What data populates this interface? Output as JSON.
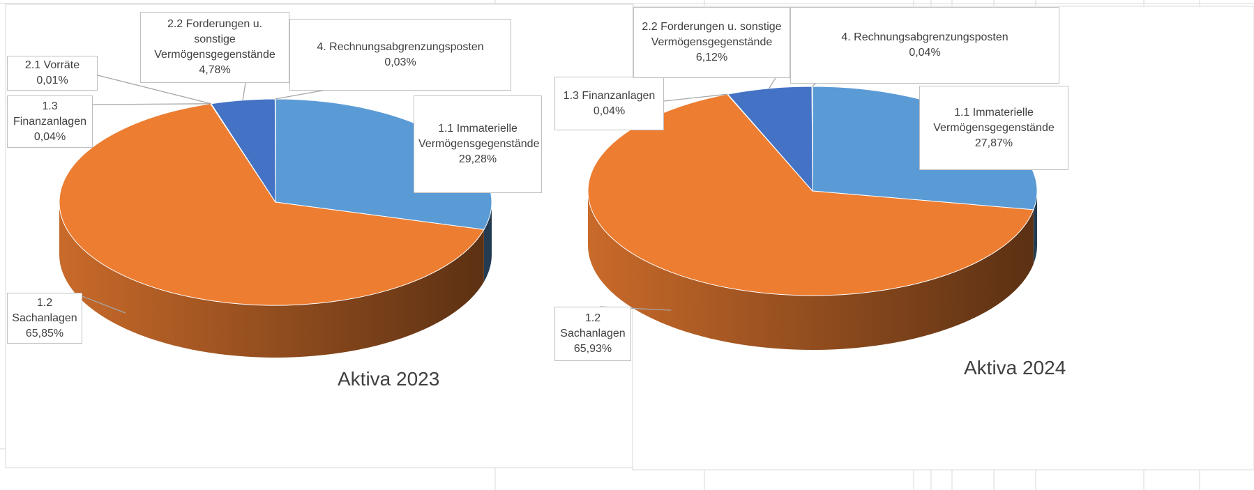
{
  "chart_data": [
    {
      "type": "pie",
      "title": "Aktiva 2023",
      "categories": [
        "1.1 Immaterielle Vermögensgegenstände",
        "1.2 Sachanlagen",
        "1.3 Finanzanlagen",
        "2.1 Vorräte",
        "2.2 Forderungen u. sonstige Vermögensgegenstände",
        "4. Rechnungsabgrenzungsposten"
      ],
      "values": [
        29.28,
        65.85,
        0.04,
        0.01,
        4.78,
        0.03
      ],
      "value_labels": [
        "29,28%",
        "65,85%",
        "0,04%",
        "0,01%",
        "4,78%",
        "0,03%"
      ],
      "colors": [
        "#5b9bd5",
        "#ed7d31",
        "#a5a5a5",
        "#ffc000",
        "#4472c4",
        "#70ad47"
      ]
    },
    {
      "type": "pie",
      "title": "Aktiva 2024",
      "categories": [
        "1.1 Immaterielle Vermögensgegenstände",
        "1.2 Sachanlagen",
        "1.3 Finanzanlagen",
        "2.2 Forderungen u. sonstige Vermögensgegenstände",
        "4. Rechnungsabgrenzungsposten"
      ],
      "values": [
        27.87,
        65.93,
        0.04,
        6.12,
        0.04
      ],
      "value_labels": [
        "27,87%",
        "65,93%",
        "0,04%",
        "6,12%",
        "0,04%"
      ],
      "colors": [
        "#5b9bd5",
        "#ed7d31",
        "#a5a5a5",
        "#4472c4",
        "#70ad47"
      ]
    }
  ]
}
